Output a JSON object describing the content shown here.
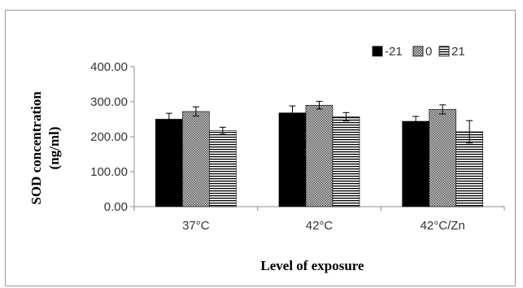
{
  "chart_data": {
    "type": "bar",
    "title": "",
    "xlabel": "Level of exposure",
    "ylabel_line1": "SOD concentration",
    "ylabel_line2": "(ng/ml)",
    "categories": [
      "37°C",
      "42°C",
      "42°C/Zn"
    ],
    "ylim": [
      0,
      400
    ],
    "yticks": [
      0,
      100,
      200,
      300,
      400
    ],
    "ytick_labels": [
      "0.00",
      "100.00",
      "200.00",
      "300.00",
      "400.00"
    ],
    "grid": false,
    "legend_position": "top-right",
    "series": [
      {
        "name": "-21",
        "values": [
          250,
          268,
          244
        ],
        "errors": [
          17,
          20,
          14
        ],
        "pattern": "solid-black"
      },
      {
        "name": "0",
        "values": [
          272,
          290,
          278
        ],
        "errors": [
          13,
          11,
          13
        ],
        "pattern": "checker-gray"
      },
      {
        "name": "21",
        "values": [
          217,
          257,
          214
        ],
        "errors": [
          10,
          12,
          32
        ],
        "pattern": "horizontal-stripes"
      }
    ]
  }
}
